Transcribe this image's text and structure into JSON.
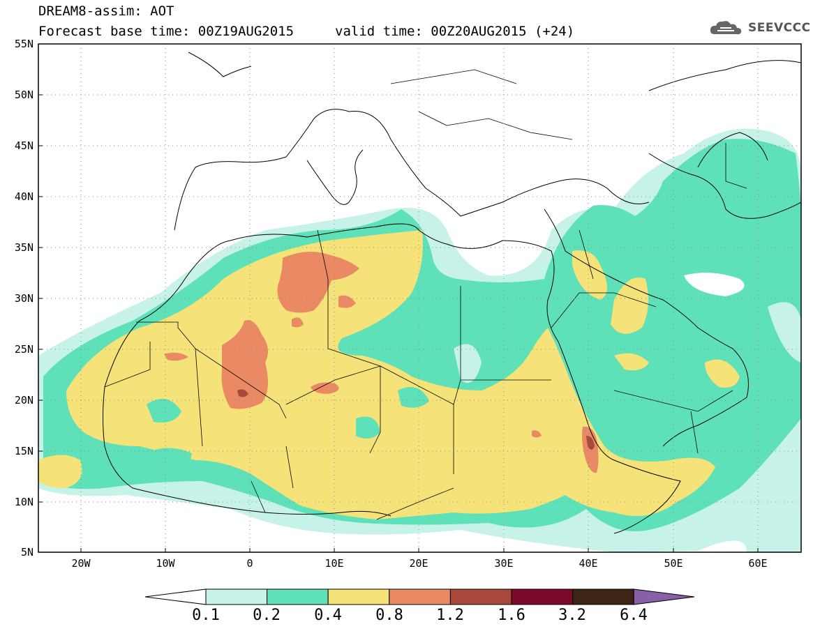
{
  "title": {
    "line1": "DREAM8-assim: AOT",
    "base": "Forecast base time: 00Z19AUG2015",
    "valid": "valid time: 00Z20AUG2015 (+24)"
  },
  "logo": {
    "text": "SEEVCCC",
    "icon": "cloud-icon"
  },
  "axes": {
    "lat_labels": [
      "55N",
      "50N",
      "45N",
      "40N",
      "35N",
      "30N",
      "25N",
      "20N",
      "15N",
      "10N",
      "5N"
    ],
    "lon_labels": [
      "20W",
      "10W",
      "0",
      "10E",
      "20E",
      "30E",
      "40E",
      "50E",
      "60E"
    ],
    "lat_range": [
      5,
      55
    ],
    "lon_range": [
      -25,
      65
    ]
  },
  "colorbar": {
    "colors": [
      "#ffffff",
      "#c6f2e9",
      "#5ee0b8",
      "#f5e278",
      "#e98a64",
      "#a8493b",
      "#7a0a2a",
      "#3d2414",
      "#8860a8"
    ],
    "labels": [
      "0.1",
      "0.2",
      "0.4",
      "0.8",
      "1.2",
      "1.6",
      "3.2",
      "6.4"
    ]
  },
  "chart_data": {
    "type": "heatmap",
    "variable": "AOT",
    "levels": [
      0.1,
      0.2,
      0.4,
      0.8,
      1.2,
      1.6,
      3.2,
      6.4
    ],
    "xlim": [
      -25,
      65
    ],
    "ylim": [
      5,
      55
    ],
    "grid": "dotted"
  }
}
